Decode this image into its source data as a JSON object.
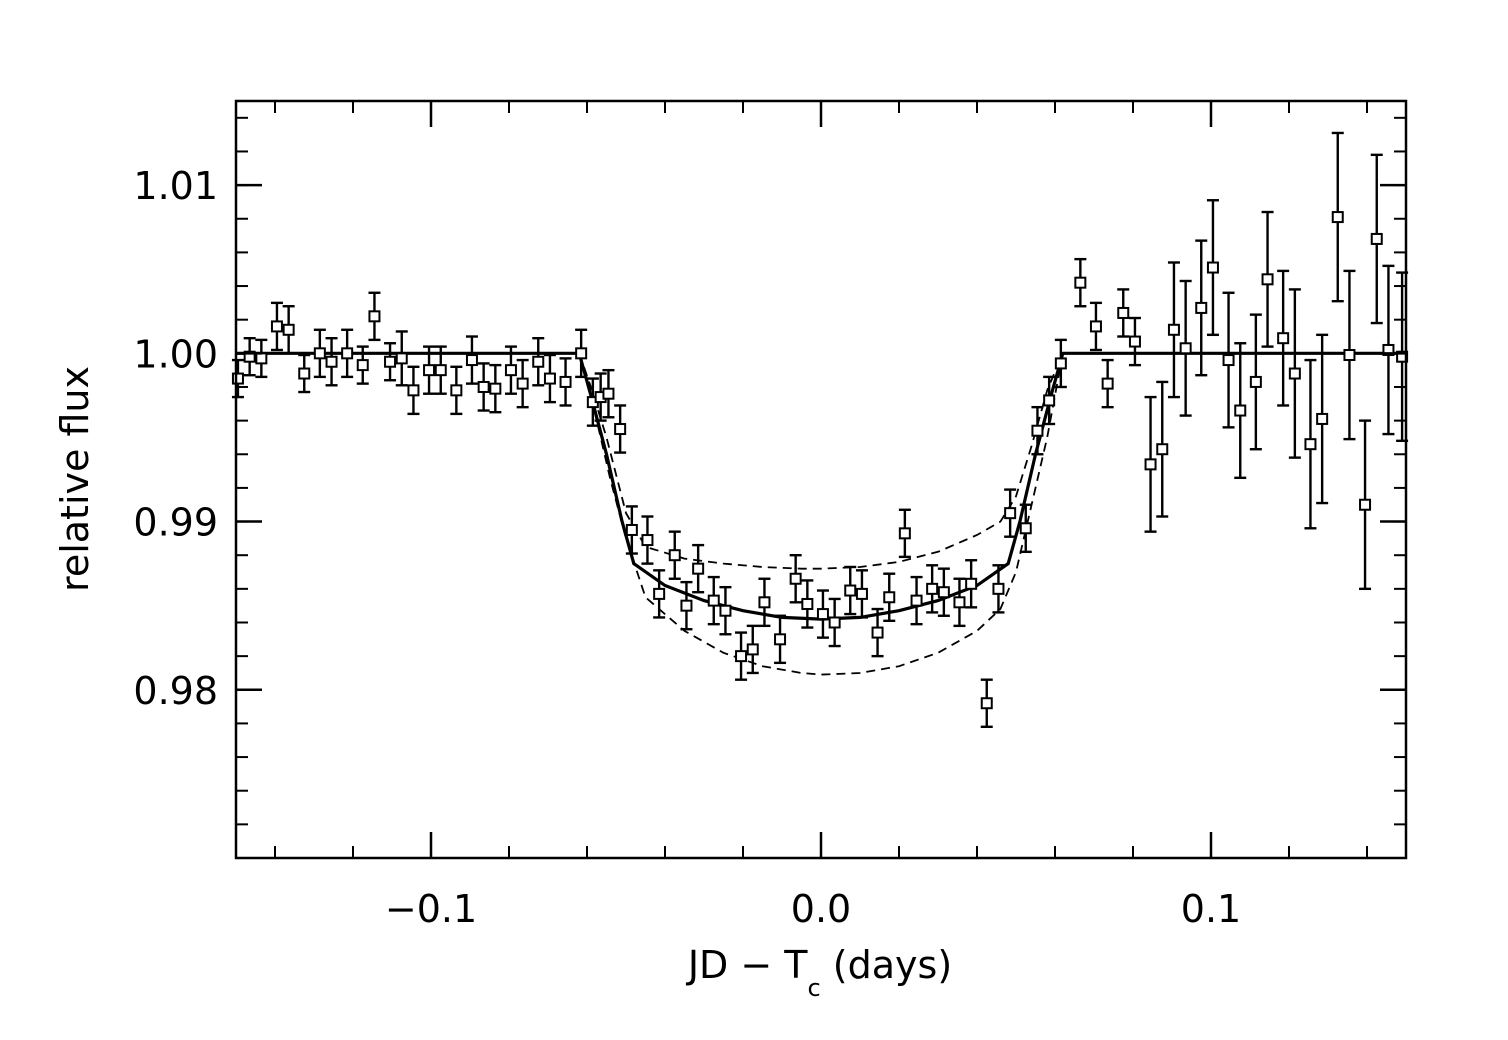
{
  "chart_data": {
    "type": "scatter",
    "title": "",
    "xlabel": "JD − T",
    "xlabel_subscript": "c",
    "xlabel_suffix": " (days)",
    "ylabel": "relative flux",
    "xlim": [
      -0.15,
      0.15
    ],
    "ylim": [
      0.97,
      1.015
    ],
    "x_ticks": [
      -0.1,
      0.0,
      0.1
    ],
    "x_tick_labels": [
      "−0.1",
      "0.0",
      "0.1"
    ],
    "y_ticks": [
      0.98,
      0.99,
      1.0,
      1.01
    ],
    "y_tick_labels": [
      "0.98",
      "0.99",
      "1.00",
      "1.01"
    ],
    "x_minor_step": 0.02,
    "y_minor_step": 0.002,
    "grid": false,
    "legend": "none",
    "series": [
      {
        "kind": "points_with_errorbars",
        "marker": "open-square",
        "points": [
          [
            -0.1495,
            0.9985,
            0.0011
          ],
          [
            -0.1465,
            0.9998,
            0.0011
          ],
          [
            -0.1435,
            0.9997,
            0.0011
          ],
          [
            -0.1395,
            1.0016,
            0.0014
          ],
          [
            -0.1365,
            1.0014,
            0.0014
          ],
          [
            -0.1325,
            0.9988,
            0.0011
          ],
          [
            -0.1285,
            1.0,
            0.0014
          ],
          [
            -0.1255,
            0.9995,
            0.0014
          ],
          [
            -0.1215,
            1.0,
            0.0014
          ],
          [
            -0.1175,
            0.9993,
            0.0011
          ],
          [
            -0.1145,
            1.0022,
            0.0014
          ],
          [
            -0.1105,
            0.9995,
            0.0011
          ],
          [
            -0.1075,
            0.9997,
            0.0016
          ],
          [
            -0.1045,
            0.9978,
            0.0014
          ],
          [
            -0.1005,
            0.999,
            0.0014
          ],
          [
            -0.0975,
            0.999,
            0.0014
          ],
          [
            -0.0935,
            0.9978,
            0.0014
          ],
          [
            -0.0895,
            0.9996,
            0.0014
          ],
          [
            -0.0865,
            0.998,
            0.0014
          ],
          [
            -0.0835,
            0.9979,
            0.0014
          ],
          [
            -0.0795,
            0.999,
            0.0014
          ],
          [
            -0.0765,
            0.9982,
            0.0014
          ],
          [
            -0.0725,
            0.9995,
            0.0014
          ],
          [
            -0.0695,
            0.9985,
            0.0014
          ],
          [
            -0.0655,
            0.9983,
            0.0014
          ],
          [
            -0.0615,
            1.0,
            0.0014
          ],
          [
            -0.0585,
            0.9971,
            0.0014
          ],
          [
            -0.0565,
            0.9974,
            0.0014
          ],
          [
            -0.0545,
            0.9976,
            0.0014
          ],
          [
            -0.0515,
            0.9955,
            0.0014
          ],
          [
            -0.0485,
            0.9895,
            0.0014
          ],
          [
            -0.0445,
            0.9889,
            0.0014
          ],
          [
            -0.0415,
            0.9857,
            0.0014
          ],
          [
            -0.0375,
            0.988,
            0.0014
          ],
          [
            -0.0345,
            0.985,
            0.0014
          ],
          [
            -0.0315,
            0.9872,
            0.0014
          ],
          [
            -0.0275,
            0.9853,
            0.0014
          ],
          [
            -0.0245,
            0.9847,
            0.0014
          ],
          [
            -0.0205,
            0.982,
            0.0014
          ],
          [
            -0.0175,
            0.9824,
            0.0014
          ],
          [
            -0.0145,
            0.9852,
            0.0014
          ],
          [
            -0.0105,
            0.983,
            0.0014
          ],
          [
            -0.0065,
            0.9866,
            0.0014
          ],
          [
            -0.0035,
            0.9851,
            0.0014
          ],
          [
            0.0005,
            0.9845,
            0.0014
          ],
          [
            0.0035,
            0.984,
            0.0014
          ],
          [
            0.0075,
            0.9859,
            0.0014
          ],
          [
            0.0105,
            0.9857,
            0.0014
          ],
          [
            0.0145,
            0.9834,
            0.0014
          ],
          [
            0.0175,
            0.9855,
            0.0014
          ],
          [
            0.0215,
            0.9893,
            0.0014
          ],
          [
            0.0245,
            0.9853,
            0.0014
          ],
          [
            0.0285,
            0.986,
            0.0014
          ],
          [
            0.0315,
            0.9858,
            0.0014
          ],
          [
            0.0355,
            0.9852,
            0.0014
          ],
          [
            0.0385,
            0.9863,
            0.0014
          ],
          [
            0.0425,
            0.9792,
            0.0014
          ],
          [
            0.0455,
            0.986,
            0.0014
          ],
          [
            0.0485,
            0.9905,
            0.0014
          ],
          [
            0.0525,
            0.9896,
            0.0014
          ],
          [
            0.0555,
            0.9954,
            0.0014
          ],
          [
            0.0585,
            0.9972,
            0.0014
          ],
          [
            0.0615,
            0.9994,
            0.0014
          ],
          [
            0.0665,
            1.0042,
            0.0014
          ],
          [
            0.0705,
            1.0016,
            0.0014
          ],
          [
            0.0735,
            0.9982,
            0.0014
          ],
          [
            0.0775,
            1.0024,
            0.0014
          ],
          [
            0.0805,
            1.0007,
            0.0014
          ],
          [
            0.0845,
            0.9934,
            0.004
          ],
          [
            0.0875,
            0.9943,
            0.004
          ],
          [
            0.0905,
            1.0014,
            0.004
          ],
          [
            0.0935,
            1.0003,
            0.004
          ],
          [
            0.0975,
            1.0027,
            0.004
          ],
          [
            0.1005,
            1.0051,
            0.004
          ],
          [
            0.1045,
            0.9996,
            0.004
          ],
          [
            0.1075,
            0.9966,
            0.004
          ],
          [
            0.1115,
            0.9983,
            0.004
          ],
          [
            0.1145,
            1.0044,
            0.004
          ],
          [
            0.1185,
            1.0009,
            0.004
          ],
          [
            0.1215,
            0.9988,
            0.005
          ],
          [
            0.1255,
            0.9946,
            0.005
          ],
          [
            0.1285,
            0.9961,
            0.005
          ],
          [
            0.1325,
            1.0081,
            0.005
          ],
          [
            0.1355,
            0.9999,
            0.005
          ],
          [
            0.1395,
            0.991,
            0.005
          ],
          [
            0.1425,
            1.0068,
            0.005
          ],
          [
            0.1455,
            1.0002,
            0.005
          ],
          [
            0.149,
            0.9998,
            0.005
          ]
        ]
      },
      {
        "kind": "line",
        "style": "solid",
        "points": [
          [
            -0.15,
            1.0
          ],
          [
            -0.062,
            1.0
          ],
          [
            -0.059,
            0.9975
          ],
          [
            -0.055,
            0.994
          ],
          [
            -0.051,
            0.99
          ],
          [
            -0.048,
            0.9875
          ],
          [
            -0.04,
            0.9862
          ],
          [
            -0.03,
            0.9853
          ],
          [
            -0.02,
            0.9847
          ],
          [
            -0.01,
            0.9843
          ],
          [
            0.0,
            0.9842
          ],
          [
            0.01,
            0.9843
          ],
          [
            0.02,
            0.9847
          ],
          [
            0.03,
            0.9853
          ],
          [
            0.04,
            0.9862
          ],
          [
            0.048,
            0.9875
          ],
          [
            0.051,
            0.99
          ],
          [
            0.055,
            0.994
          ],
          [
            0.059,
            0.9975
          ],
          [
            0.062,
            1.0
          ],
          [
            0.15,
            1.0
          ]
        ]
      },
      {
        "kind": "line",
        "style": "dashed",
        "points": [
          [
            -0.062,
            1.0
          ],
          [
            -0.058,
            0.9965
          ],
          [
            -0.054,
            0.9925
          ],
          [
            -0.05,
            0.989
          ],
          [
            -0.045,
            0.9855
          ],
          [
            -0.035,
            0.9835
          ],
          [
            -0.025,
            0.9822
          ],
          [
            -0.015,
            0.9814
          ],
          [
            -0.005,
            0.981
          ],
          [
            0.0,
            0.9809
          ],
          [
            0.01,
            0.981
          ],
          [
            0.02,
            0.9814
          ],
          [
            0.03,
            0.9822
          ],
          [
            0.04,
            0.9835
          ],
          [
            0.046,
            0.9848
          ],
          [
            0.05,
            0.987
          ],
          [
            0.054,
            0.991
          ],
          [
            0.058,
            0.995
          ],
          [
            0.062,
            1.0
          ]
        ]
      },
      {
        "kind": "line",
        "style": "dashed",
        "points": [
          [
            -0.062,
            1.0
          ],
          [
            -0.059,
            0.998
          ],
          [
            -0.055,
            0.995
          ],
          [
            -0.05,
            0.9905
          ],
          [
            -0.045,
            0.9885
          ],
          [
            -0.035,
            0.9878
          ],
          [
            -0.025,
            0.9875
          ],
          [
            -0.015,
            0.9873
          ],
          [
            -0.005,
            0.9872
          ],
          [
            0.0,
            0.9872
          ],
          [
            0.01,
            0.9873
          ],
          [
            0.02,
            0.9876
          ],
          [
            0.03,
            0.9882
          ],
          [
            0.04,
            0.9892
          ],
          [
            0.046,
            0.99
          ],
          [
            0.05,
            0.9915
          ],
          [
            0.054,
            0.9945
          ],
          [
            0.058,
            0.9978
          ],
          [
            0.062,
            1.0
          ]
        ]
      }
    ]
  }
}
